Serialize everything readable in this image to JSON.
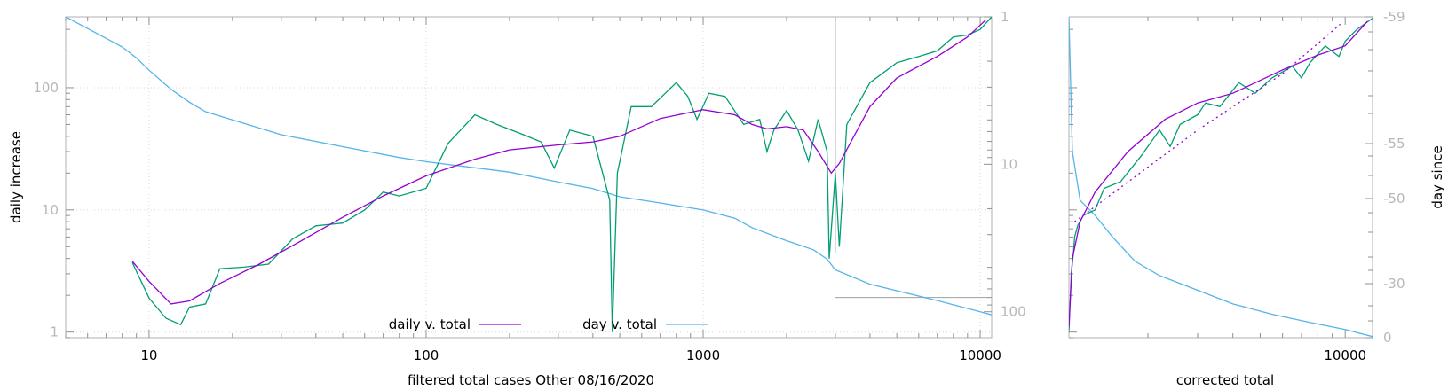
{
  "chart_data": [
    {
      "type": "line",
      "xlabel": "filtered total cases Other 08/16/2020",
      "ylabel": "daily increase",
      "y2label": "",
      "xscale": "log",
      "yscale": "log",
      "y2scale": "log",
      "xlim": [
        5,
        11000
      ],
      "ylim": [
        0.9,
        380
      ],
      "y2lim": [
        1,
        150
      ],
      "x_ticks": [
        "10",
        "100",
        "1000",
        "10000"
      ],
      "y_ticks": [
        "1",
        "10",
        "100"
      ],
      "y2_ticks": [
        "1",
        "10",
        "100"
      ],
      "grid": true,
      "legend_position": "bottom-center",
      "series": [
        {
          "name": "daily v. total",
          "color": "#9400d3",
          "axis": "y",
          "points": [
            [
              8.7,
              3.8
            ],
            [
              10,
              2.6
            ],
            [
              12,
              1.7
            ],
            [
              14,
              1.8
            ],
            [
              18,
              2.5
            ],
            [
              25,
              3.6
            ],
            [
              35,
              5.5
            ],
            [
              50,
              8.7
            ],
            [
              70,
              13
            ],
            [
              100,
              19
            ],
            [
              150,
              26
            ],
            [
              200,
              31
            ],
            [
              300,
              34
            ],
            [
              400,
              36
            ],
            [
              500,
              40
            ],
            [
              700,
              56
            ],
            [
              1000,
              66
            ],
            [
              1300,
              60
            ],
            [
              1500,
              50
            ],
            [
              1700,
              46
            ],
            [
              2000,
              48
            ],
            [
              2300,
              45
            ],
            [
              2600,
              30
            ],
            [
              2900,
              20
            ],
            [
              3100,
              24
            ],
            [
              3500,
              40
            ],
            [
              4000,
              70
            ],
            [
              5000,
              120
            ],
            [
              7000,
              180
            ],
            [
              9000,
              260
            ],
            [
              10500,
              360
            ]
          ]
        },
        {
          "name": "",
          "color": "#009e73",
          "axis": "y",
          "points": [
            [
              8.7,
              3.7
            ],
            [
              10,
              1.9
            ],
            [
              11.5,
              1.3
            ],
            [
              13,
              1.15
            ],
            [
              14,
              1.6
            ],
            [
              16,
              1.7
            ],
            [
              18,
              3.3
            ],
            [
              22,
              3.4
            ],
            [
              27,
              3.6
            ],
            [
              33,
              5.8
            ],
            [
              40,
              7.4
            ],
            [
              50,
              7.8
            ],
            [
              60,
              10
            ],
            [
              70,
              14
            ],
            [
              80,
              13
            ],
            [
              100,
              15
            ],
            [
              120,
              35
            ],
            [
              150,
              60
            ],
            [
              180,
              50
            ],
            [
              220,
              42
            ],
            [
              260,
              36
            ],
            [
              290,
              22
            ],
            [
              330,
              45
            ],
            [
              400,
              40
            ],
            [
              460,
              12
            ],
            [
              470,
              1
            ],
            [
              490,
              20
            ],
            [
              550,
              70
            ],
            [
              650,
              70
            ],
            [
              800,
              110
            ],
            [
              880,
              85
            ],
            [
              950,
              55
            ],
            [
              1050,
              90
            ],
            [
              1200,
              85
            ],
            [
              1400,
              50
            ],
            [
              1600,
              55
            ],
            [
              1700,
              30
            ],
            [
              1800,
              45
            ],
            [
              2000,
              65
            ],
            [
              2200,
              45
            ],
            [
              2400,
              25
            ],
            [
              2600,
              55
            ],
            [
              2800,
              30
            ],
            [
              2850,
              4
            ],
            [
              3000,
              20
            ],
            [
              3100,
              5
            ],
            [
              3300,
              50
            ],
            [
              4000,
              110
            ],
            [
              5000,
              160
            ],
            [
              6000,
              180
            ],
            [
              7000,
              200
            ],
            [
              8000,
              260
            ],
            [
              9000,
              270
            ],
            [
              10000,
              300
            ],
            [
              11000,
              380
            ]
          ]
        },
        {
          "name": "day v. total",
          "color": "#56b4e9",
          "axis": "y2",
          "points": [
            [
              5,
              1
            ],
            [
              6,
              1.2
            ],
            [
              7,
              1.4
            ],
            [
              8,
              1.6
            ],
            [
              9,
              1.9
            ],
            [
              10,
              2.3
            ],
            [
              12,
              3.1
            ],
            [
              14,
              3.8
            ],
            [
              16,
              4.4
            ],
            [
              20,
              5.0
            ],
            [
              30,
              6.3
            ],
            [
              50,
              7.6
            ],
            [
              80,
              9.0
            ],
            [
              100,
              9.6
            ],
            [
              200,
              11.3
            ],
            [
              300,
              13.2
            ],
            [
              400,
              14.6
            ],
            [
              500,
              16.6
            ],
            [
              700,
              18.3
            ],
            [
              1000,
              20.4
            ],
            [
              1300,
              23.2
            ],
            [
              1500,
              26.9
            ],
            [
              2000,
              33
            ],
            [
              2500,
              38
            ],
            [
              2800,
              44
            ],
            [
              3000,
              52
            ],
            [
              4000,
              65
            ],
            [
              5000,
              72
            ],
            [
              7000,
              84
            ],
            [
              10000,
              100
            ],
            [
              11000,
              105
            ]
          ]
        }
      ],
      "annotations": [
        {
          "type": "step-line",
          "color": "#a0a0a0",
          "points": [
            [
              3000,
              1
            ],
            [
              3000,
              40
            ],
            [
              11000,
              40
            ]
          ]
        },
        {
          "type": "line",
          "color": "#a0a0a0",
          "points": [
            [
              3000,
              80
            ],
            [
              11000,
              80
            ]
          ]
        }
      ]
    },
    {
      "type": "line",
      "xlabel": "corrected total",
      "ylabel": "",
      "y2label": "day since",
      "xscale": "log",
      "yscale": "log",
      "xlim": [
        1050,
        12500
      ],
      "ylim": [
        0.9,
        380
      ],
      "y2lim": [
        0,
        -59
      ],
      "x_ticks": [
        "10000"
      ],
      "y2_ticks": [
        "0",
        "-30",
        "-50",
        "-55",
        "-59"
      ],
      "grid": false,
      "series": [
        {
          "name": "",
          "color": "#9400d3",
          "axis": "y",
          "points": [
            [
              1050,
              1.1
            ],
            [
              1080,
              4
            ],
            [
              1150,
              8
            ],
            [
              1300,
              14
            ],
            [
              1700,
              30
            ],
            [
              2300,
              55
            ],
            [
              3000,
              75
            ],
            [
              4000,
              90
            ],
            [
              6000,
              140
            ],
            [
              8000,
              185
            ],
            [
              10000,
              220
            ],
            [
              12000,
              350
            ]
          ]
        },
        {
          "name": "",
          "color": "#9400d3",
          "dashed": true,
          "axis": "y",
          "points": [
            [
              1100,
              8
            ],
            [
              3000,
              45
            ],
            [
              6000,
              130
            ],
            [
              9600,
              330
            ]
          ]
        },
        {
          "name": "",
          "color": "#009e73",
          "axis": "y",
          "points": [
            [
              1050,
              1
            ],
            [
              1070,
              3
            ],
            [
              1090,
              4.5
            ],
            [
              1100,
              6
            ],
            [
              1130,
              7.5
            ],
            [
              1180,
              9
            ],
            [
              1300,
              10
            ],
            [
              1400,
              15
            ],
            [
              1600,
              17
            ],
            [
              1900,
              28
            ],
            [
              2200,
              45
            ],
            [
              2400,
              33
            ],
            [
              2600,
              50
            ],
            [
              3000,
              60
            ],
            [
              3200,
              75
            ],
            [
              3600,
              70
            ],
            [
              4200,
              110
            ],
            [
              4800,
              90
            ],
            [
              5500,
              120
            ],
            [
              6500,
              150
            ],
            [
              7000,
              120
            ],
            [
              7500,
              160
            ],
            [
              8500,
              220
            ],
            [
              9500,
              180
            ],
            [
              10000,
              240
            ],
            [
              11000,
              300
            ],
            [
              12500,
              370
            ]
          ]
        },
        {
          "name": "",
          "color": "#56b4e9",
          "axis": "y",
          "points": [
            [
              1050,
              380
            ],
            [
              1080,
              30
            ],
            [
              1150,
              12
            ],
            [
              1300,
              9
            ],
            [
              1500,
              6
            ],
            [
              1800,
              3.8
            ],
            [
              2200,
              2.9
            ],
            [
              3000,
              2.2
            ],
            [
              4000,
              1.7
            ],
            [
              5500,
              1.4
            ],
            [
              7500,
              1.2
            ],
            [
              10000,
              1.05
            ],
            [
              12500,
              0.92
            ]
          ]
        }
      ]
    }
  ],
  "legend": [
    {
      "label": "daily v. total",
      "color": "#9400d3"
    },
    {
      "label": "day v. total",
      "color": "#56b4e9"
    }
  ]
}
